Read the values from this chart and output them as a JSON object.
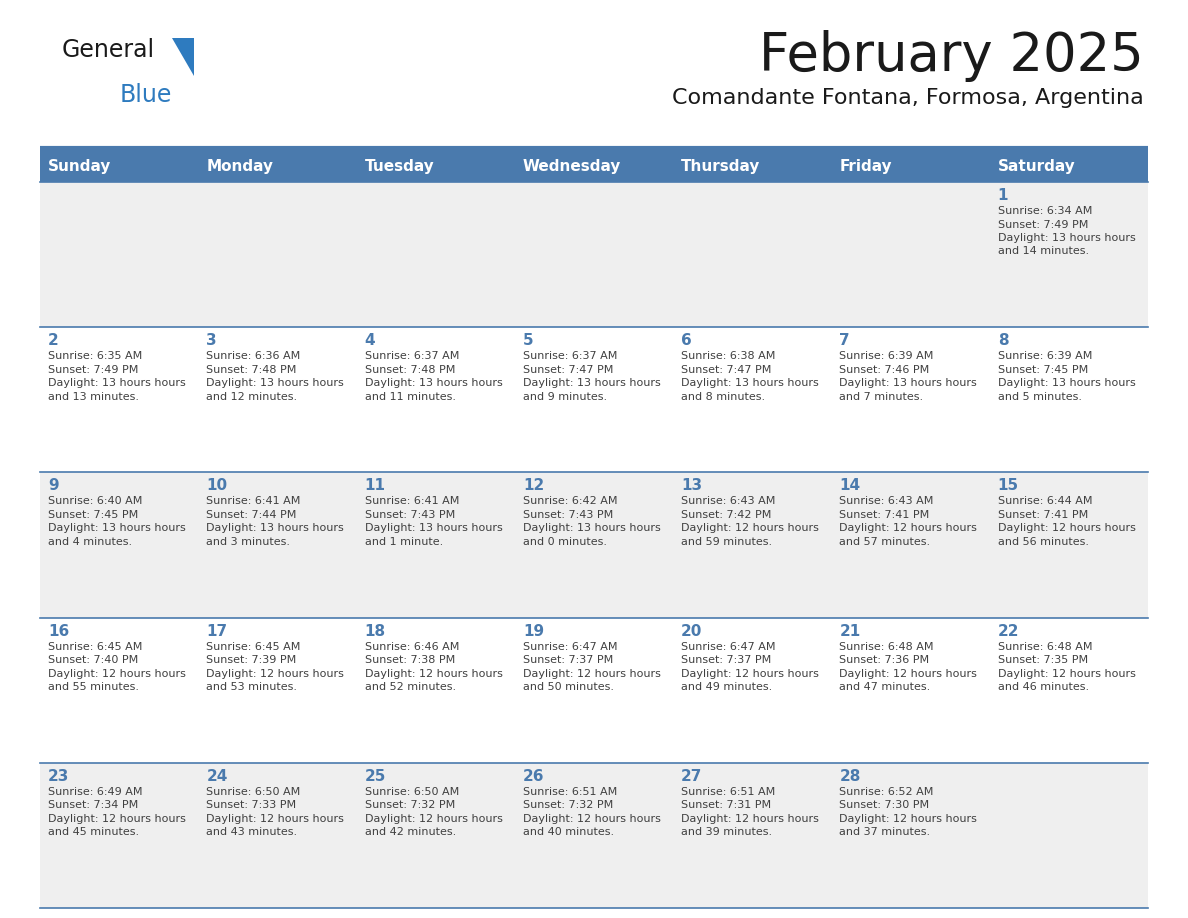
{
  "title": "February 2025",
  "subtitle": "Comandante Fontana, Formosa, Argentina",
  "header_bg": "#4a7aad",
  "header_text_color": "#ffffff",
  "day_headers": [
    "Sunday",
    "Monday",
    "Tuesday",
    "Wednesday",
    "Thursday",
    "Friday",
    "Saturday"
  ],
  "title_color": "#1a1a1a",
  "subtitle_color": "#1a1a1a",
  "line_color": "#4a7aad",
  "day_number_color": "#4a7aad",
  "cell_text_color": "#404040",
  "row_bg_colors": [
    "#efefef",
    "#ffffff",
    "#efefef",
    "#ffffff",
    "#efefef"
  ],
  "calendar": [
    [
      null,
      null,
      null,
      null,
      null,
      null,
      {
        "day": "1",
        "sunrise": "6:34 AM",
        "sunset": "7:49 PM",
        "daylight": "13 hours and 14 minutes."
      }
    ],
    [
      {
        "day": "2",
        "sunrise": "6:35 AM",
        "sunset": "7:49 PM",
        "daylight": "13 hours and 13 minutes."
      },
      {
        "day": "3",
        "sunrise": "6:36 AM",
        "sunset": "7:48 PM",
        "daylight": "13 hours and 12 minutes."
      },
      {
        "day": "4",
        "sunrise": "6:37 AM",
        "sunset": "7:48 PM",
        "daylight": "13 hours and 11 minutes."
      },
      {
        "day": "5",
        "sunrise": "6:37 AM",
        "sunset": "7:47 PM",
        "daylight": "13 hours and 9 minutes."
      },
      {
        "day": "6",
        "sunrise": "6:38 AM",
        "sunset": "7:47 PM",
        "daylight": "13 hours and 8 minutes."
      },
      {
        "day": "7",
        "sunrise": "6:39 AM",
        "sunset": "7:46 PM",
        "daylight": "13 hours and 7 minutes."
      },
      {
        "day": "8",
        "sunrise": "6:39 AM",
        "sunset": "7:45 PM",
        "daylight": "13 hours and 5 minutes."
      }
    ],
    [
      {
        "day": "9",
        "sunrise": "6:40 AM",
        "sunset": "7:45 PM",
        "daylight": "13 hours and 4 minutes."
      },
      {
        "day": "10",
        "sunrise": "6:41 AM",
        "sunset": "7:44 PM",
        "daylight": "13 hours and 3 minutes."
      },
      {
        "day": "11",
        "sunrise": "6:41 AM",
        "sunset": "7:43 PM",
        "daylight": "13 hours and 1 minute."
      },
      {
        "day": "12",
        "sunrise": "6:42 AM",
        "sunset": "7:43 PM",
        "daylight": "13 hours and 0 minutes."
      },
      {
        "day": "13",
        "sunrise": "6:43 AM",
        "sunset": "7:42 PM",
        "daylight": "12 hours and 59 minutes."
      },
      {
        "day": "14",
        "sunrise": "6:43 AM",
        "sunset": "7:41 PM",
        "daylight": "12 hours and 57 minutes."
      },
      {
        "day": "15",
        "sunrise": "6:44 AM",
        "sunset": "7:41 PM",
        "daylight": "12 hours and 56 minutes."
      }
    ],
    [
      {
        "day": "16",
        "sunrise": "6:45 AM",
        "sunset": "7:40 PM",
        "daylight": "12 hours and 55 minutes."
      },
      {
        "day": "17",
        "sunrise": "6:45 AM",
        "sunset": "7:39 PM",
        "daylight": "12 hours and 53 minutes."
      },
      {
        "day": "18",
        "sunrise": "6:46 AM",
        "sunset": "7:38 PM",
        "daylight": "12 hours and 52 minutes."
      },
      {
        "day": "19",
        "sunrise": "6:47 AM",
        "sunset": "7:37 PM",
        "daylight": "12 hours and 50 minutes."
      },
      {
        "day": "20",
        "sunrise": "6:47 AM",
        "sunset": "7:37 PM",
        "daylight": "12 hours and 49 minutes."
      },
      {
        "day": "21",
        "sunrise": "6:48 AM",
        "sunset": "7:36 PM",
        "daylight": "12 hours and 47 minutes."
      },
      {
        "day": "22",
        "sunrise": "6:48 AM",
        "sunset": "7:35 PM",
        "daylight": "12 hours and 46 minutes."
      }
    ],
    [
      {
        "day": "23",
        "sunrise": "6:49 AM",
        "sunset": "7:34 PM",
        "daylight": "12 hours and 45 minutes."
      },
      {
        "day": "24",
        "sunrise": "6:50 AM",
        "sunset": "7:33 PM",
        "daylight": "12 hours and 43 minutes."
      },
      {
        "day": "25",
        "sunrise": "6:50 AM",
        "sunset": "7:32 PM",
        "daylight": "12 hours and 42 minutes."
      },
      {
        "day": "26",
        "sunrise": "6:51 AM",
        "sunset": "7:32 PM",
        "daylight": "12 hours and 40 minutes."
      },
      {
        "day": "27",
        "sunrise": "6:51 AM",
        "sunset": "7:31 PM",
        "daylight": "12 hours and 39 minutes."
      },
      {
        "day": "28",
        "sunrise": "6:52 AM",
        "sunset": "7:30 PM",
        "daylight": "12 hours and 37 minutes."
      },
      null
    ]
  ],
  "logo_general_color": "#1a1a1a",
  "logo_blue_color": "#2e7bbf"
}
